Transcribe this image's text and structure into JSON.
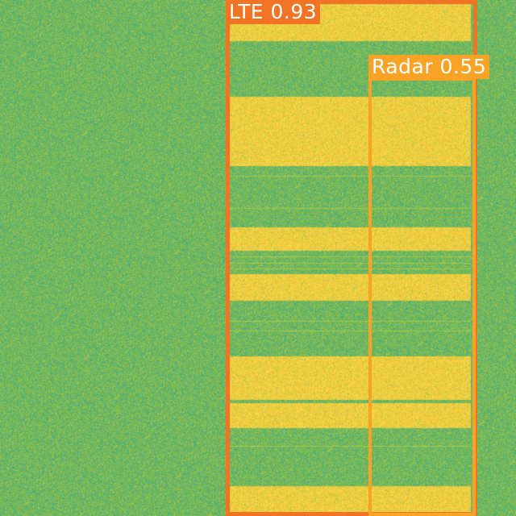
{
  "colors": {
    "noise_green": "#7cba54",
    "noise_teal": "#4fb083",
    "signal_yellow": "#f3c83a",
    "lte_box": "#f37324",
    "radar_box": "#f8a326",
    "label_text": "#ffffff"
  },
  "detections": [
    {
      "class_label": "LTE",
      "score": "0.93",
      "text": "LTE 0.93"
    },
    {
      "class_label": "Radar",
      "score": "0.55",
      "text": "Radar 0.55"
    }
  ]
}
